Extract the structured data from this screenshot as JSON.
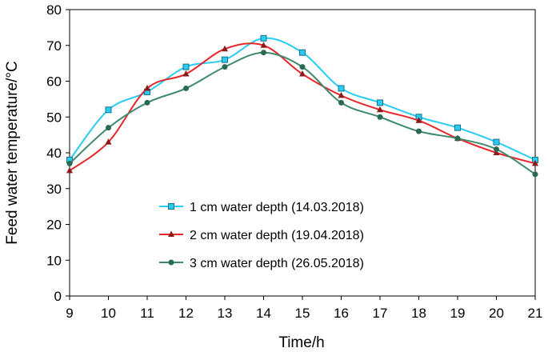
{
  "chart_data": {
    "type": "line",
    "title": "",
    "xlabel": "Time/h",
    "ylabel": "Feed water temperature/°C",
    "x": [
      9,
      10,
      11,
      12,
      13,
      14,
      15,
      16,
      17,
      18,
      19,
      20,
      21
    ],
    "xlim": [
      9,
      21
    ],
    "ylim": [
      0,
      80
    ],
    "xticks": [
      9,
      10,
      11,
      12,
      13,
      14,
      15,
      16,
      17,
      18,
      19,
      20,
      21
    ],
    "yticks": [
      0,
      10,
      20,
      30,
      40,
      50,
      60,
      70,
      80
    ],
    "grid": false,
    "legend_position": "center-left",
    "series": [
      {
        "name": "1 cm water depth (14.03.2018)",
        "color": "#29ccf2",
        "marker": "square",
        "values": [
          38,
          52,
          57,
          64,
          66,
          72,
          68,
          58,
          54,
          50,
          47,
          43,
          38
        ]
      },
      {
        "name": "2 cm water depth (19.04.2018)",
        "color": "#e8262a",
        "marker": "triangle",
        "values": [
          35,
          43,
          58,
          62,
          69,
          70,
          62,
          56,
          52,
          49,
          44,
          40,
          37
        ]
      },
      {
        "name": "3 cm water depth (26.05.2018)",
        "color": "#3e8a6b",
        "marker": "circle",
        "values": [
          37,
          47,
          54,
          58,
          64,
          68,
          64,
          54,
          50,
          46,
          44,
          41,
          34
        ]
      }
    ]
  }
}
